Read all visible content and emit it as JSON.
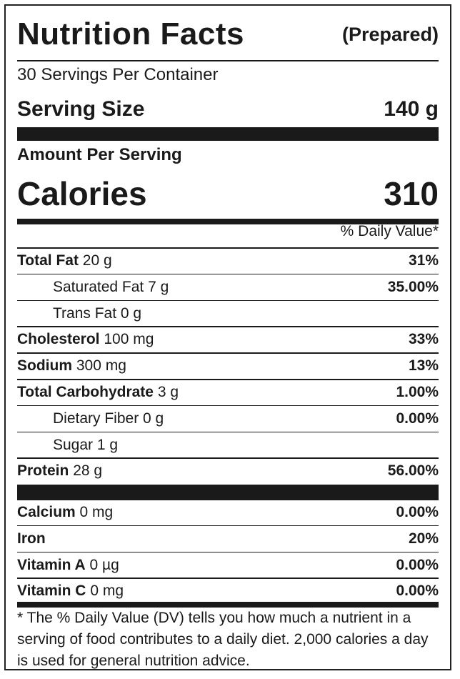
{
  "header": {
    "title": "Nutrition Facts",
    "subtitle": "(Prepared)"
  },
  "servings_per_container": "30 Servings Per Container",
  "serving_size": {
    "label": "Serving Size",
    "value": "140 g"
  },
  "amount_per_serving": "Amount Per Serving",
  "calories": {
    "label": "Calories",
    "value": "310"
  },
  "daily_value_header": "% Daily Value*",
  "nutrients": [
    {
      "name": "Total Fat",
      "amount": "20 g",
      "dv": "31%"
    },
    {
      "name": "Saturated Fat 7 g",
      "amount": "",
      "dv": "35.00%"
    },
    {
      "name": "Trans Fat 0 g",
      "amount": "",
      "dv": ""
    },
    {
      "name": "Cholesterol",
      "amount": "100 mg",
      "dv": "33%"
    },
    {
      "name": "Sodium",
      "amount": "300 mg",
      "dv": "13%"
    },
    {
      "name": "Total Carbohydrate",
      "amount": "3 g",
      "dv": "1.00%"
    },
    {
      "name": "Dietary Fiber 0 g",
      "amount": "",
      "dv": "0.00%"
    },
    {
      "name": "Sugar 1 g",
      "amount": "",
      "dv": ""
    },
    {
      "name": "Protein",
      "amount": "28 g",
      "dv": "56.00%"
    }
  ],
  "vitamins": [
    {
      "name": "Calcium",
      "amount": "0 mg",
      "dv": "0.00%"
    },
    {
      "name": "Iron",
      "amount": "",
      "dv": "20%"
    },
    {
      "name": "Vitamin A",
      "amount": "0 µg",
      "dv": "0.00%"
    },
    {
      "name": "Vitamin C",
      "amount": "0 mg",
      "dv": "0.00%"
    }
  ],
  "footnote": "* The % Daily Value (DV) tells you how much a nutrient in a serving of food contributes to a daily diet. 2,000 calories a day is used for general nutrition advice."
}
